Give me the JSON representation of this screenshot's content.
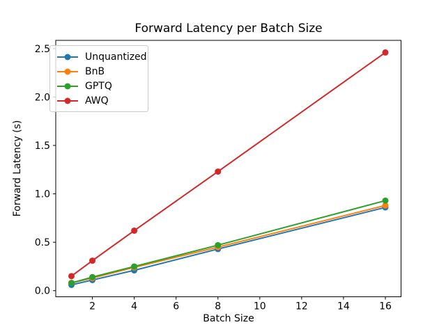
{
  "chart_data": {
    "type": "line",
    "title": "Forward Latency per Batch Size",
    "xlabel": "Batch Size",
    "ylabel": "Forward Latency (s)",
    "x": [
      1,
      2,
      4,
      8,
      16
    ],
    "series": [
      {
        "name": "Unquantized",
        "color": "#1f77b4",
        "values": [
          0.06,
          0.11,
          0.21,
          0.43,
          0.86
        ]
      },
      {
        "name": "BnB",
        "color": "#ff7f0e",
        "values": [
          0.08,
          0.13,
          0.24,
          0.45,
          0.88
        ]
      },
      {
        "name": "GPTQ",
        "color": "#2ca02c",
        "values": [
          0.08,
          0.14,
          0.25,
          0.47,
          0.93
        ]
      },
      {
        "name": "AWQ",
        "color": "#d62728",
        "values": [
          0.15,
          0.31,
          0.62,
          1.23,
          2.46
        ]
      }
    ],
    "xticks": [
      2,
      4,
      6,
      8,
      10,
      12,
      14,
      16
    ],
    "yticks": [
      "0.0",
      "0.5",
      "1.0",
      "1.5",
      "2.0",
      "2.5"
    ],
    "xlim": [
      0.25,
      16.75
    ],
    "ylim": [
      -0.063,
      2.585
    ],
    "legend_position": "upper-left",
    "grid": false,
    "marker": "circle",
    "marker_size": 4.5,
    "line_width": 2,
    "axis_color": "#000000",
    "background_color": "#ffffff"
  }
}
